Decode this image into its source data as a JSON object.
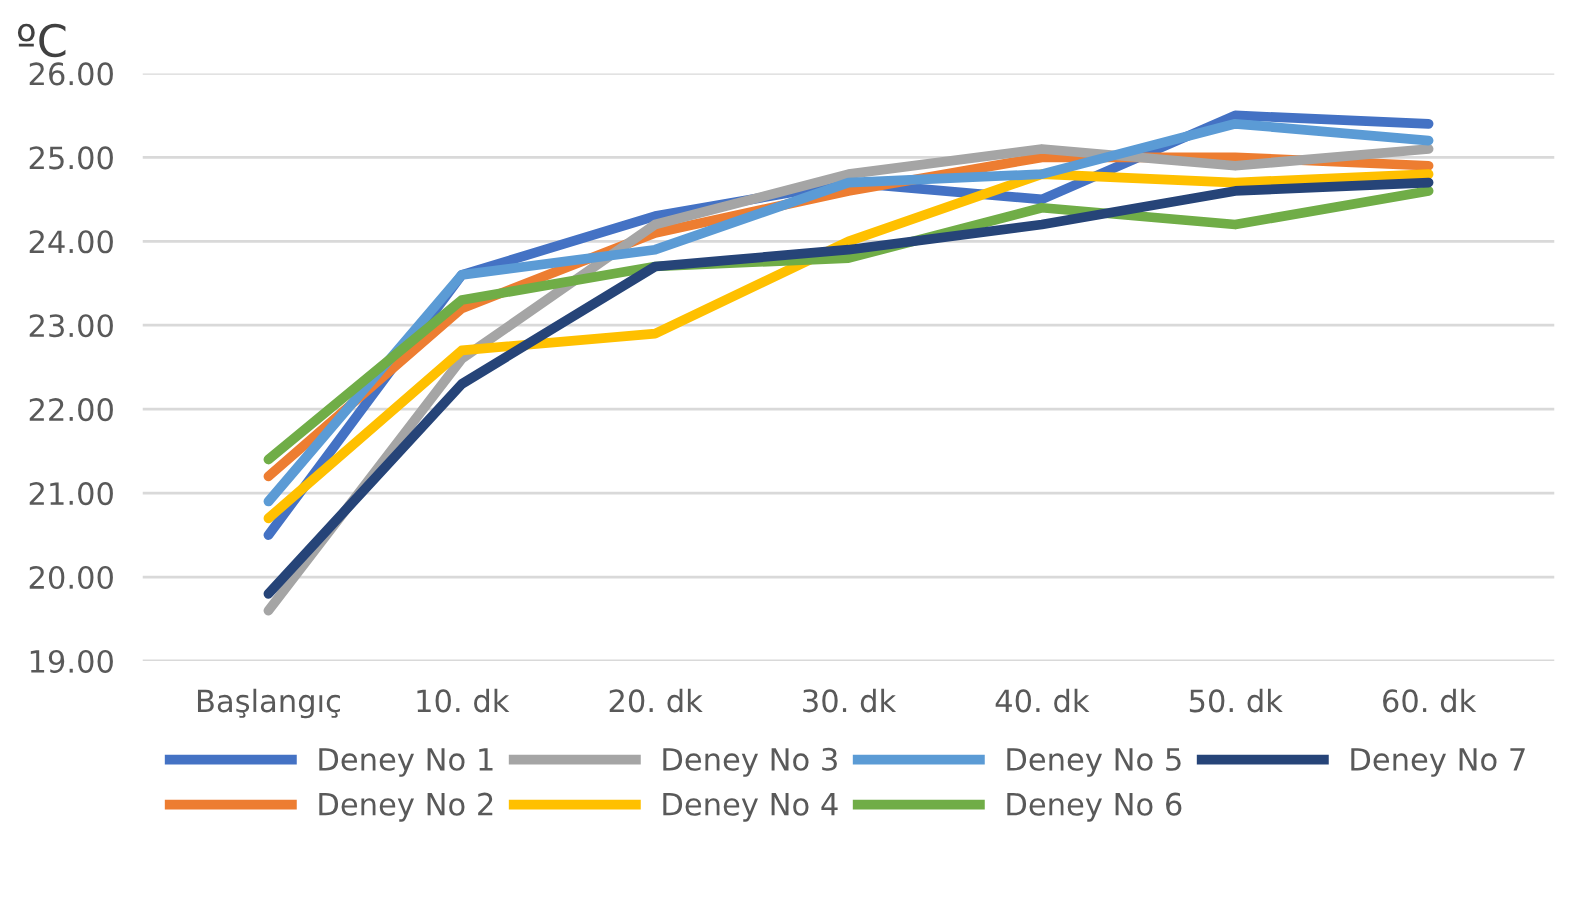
{
  "chart_data": {
    "type": "line",
    "ylabel": "ºC",
    "categories": [
      "Başlangıç",
      "10. dk",
      "20. dk",
      "30. dk",
      "40. dk",
      "50. dk",
      "60. dk"
    ],
    "ylim": [
      19,
      26
    ],
    "yticks": [
      {
        "value": 19,
        "label": "19.00"
      },
      {
        "value": 20,
        "label": "20.00"
      },
      {
        "value": 21,
        "label": "21.00"
      },
      {
        "value": 22,
        "label": "22.00"
      },
      {
        "value": 23,
        "label": "23.00"
      },
      {
        "value": 24,
        "label": "24.00"
      },
      {
        "value": 25,
        "label": "25.00"
      },
      {
        "value": 26,
        "label": "26.00"
      }
    ],
    "grid": "y",
    "legend": "bottom",
    "marker": "none",
    "line_style": "solid",
    "series": [
      {
        "name": "Deney No 1",
        "color": "#4472c4",
        "values": [
          20.5,
          23.6,
          24.3,
          24.7,
          24.5,
          25.5,
          25.4
        ]
      },
      {
        "name": "Deney No 2",
        "color": "#ed7d31",
        "values": [
          21.2,
          23.2,
          24.1,
          24.6,
          25.0,
          25.0,
          24.9
        ]
      },
      {
        "name": "Deney No 3",
        "color": "#a5a5a5",
        "values": [
          19.6,
          22.6,
          24.2,
          24.8,
          25.1,
          24.9,
          25.1
        ]
      },
      {
        "name": "Deney No 4",
        "color": "#ffc000",
        "values": [
          20.7,
          22.7,
          22.9,
          24.0,
          24.8,
          24.7,
          24.8
        ]
      },
      {
        "name": "Deney No 5",
        "color": "#5b9bd5",
        "values": [
          20.9,
          23.6,
          23.9,
          24.7,
          24.8,
          25.4,
          25.2
        ]
      },
      {
        "name": "Deney No 6",
        "color": "#70ad47",
        "values": [
          21.4,
          23.3,
          23.7,
          23.8,
          24.4,
          24.2,
          24.6
        ]
      },
      {
        "name": "Deney No 7",
        "color": "#264478",
        "values": [
          19.8,
          22.3,
          23.7,
          23.9,
          24.2,
          24.6,
          24.7
        ]
      }
    ]
  }
}
